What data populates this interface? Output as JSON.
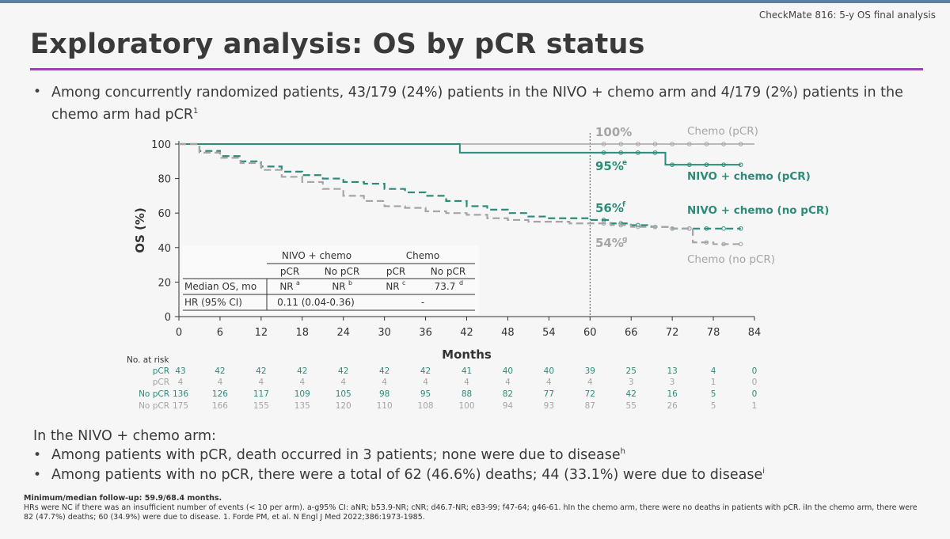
{
  "header": {
    "context": "CheckMate 816: 5-y OS final analysis"
  },
  "title": "Exploratory analysis: OS by pCR status",
  "intro": {
    "bullet": "•",
    "text": "Among concurrently randomized patients, 43/179 (24%) patients in the NIVO + chemo arm and 4/179 (2%) patients in the chemo arm had pCR",
    "sup": "1"
  },
  "lower": {
    "heading": "In the NIVO + chemo arm:",
    "bullets": [
      {
        "text": "Among patients with pCR, death occurred in 3 patients; none were due to disease",
        "sup": "h"
      },
      {
        "text": "Among patients with no pCR, there were a total of 62 (46.6%) deaths; 44 (33.1%) were due to disease",
        "sup": "i"
      }
    ]
  },
  "footnotes": {
    "line1": "Minimum/median follow-up: 59.9/68.4 months.",
    "line2": "HRs were NC if there was an insufficient number of events (< 10 per arm). a-g95% CI: aNR; b53.9-NR; cNR; d46.7-NR; e83-99; f47-64; g46-61. hIn the chemo arm, there were no deaths in patients with pCR. iIn the chemo arm, there were 82 (47.7%) deaths; 60 (34.9%) were due to disease. 1. Forde PM, et al. N Engl J Med 2022;386:1973-1985."
  },
  "colors": {
    "teal": "#2e8b7a",
    "gray": "#a5a5a5",
    "accent_rule": "#9c46b4"
  },
  "chart_data": {
    "type": "line",
    "xlabel": "Months",
    "ylabel": "OS (%)",
    "xlim": [
      0,
      84
    ],
    "ylim": [
      0,
      100
    ],
    "xticks": [
      0,
      6,
      12,
      18,
      24,
      30,
      36,
      42,
      48,
      54,
      60,
      66,
      72,
      78,
      84
    ],
    "yticks": [
      0,
      20,
      40,
      60,
      80,
      100
    ],
    "reference_line_x": 60,
    "series": [
      {
        "name": "Chemo (pCR)",
        "style": "solid-gray",
        "value_at_60": "100%",
        "x": [
          0,
          84
        ],
        "y": [
          100,
          100
        ]
      },
      {
        "name": "NIVO + chemo (pCR)",
        "style": "solid-teal",
        "value_at_60": "95%",
        "value_sup": "e",
        "x": [
          0,
          41,
          71,
          82
        ],
        "y": [
          100,
          95,
          88,
          88
        ]
      },
      {
        "name": "NIVO + chemo (no pCR)",
        "style": "dashed-teal",
        "value_at_60": "56%",
        "value_sup": "f",
        "x": [
          0,
          3,
          6,
          9,
          12,
          15,
          18,
          21,
          24,
          27,
          30,
          33,
          36,
          39,
          42,
          45,
          48,
          51,
          54,
          57,
          60,
          63,
          66,
          69,
          72,
          75,
          78,
          82
        ],
        "y": [
          100,
          96,
          93,
          90,
          87,
          84,
          82,
          80,
          78,
          77,
          74,
          72,
          70,
          67,
          64,
          62,
          60,
          58,
          57,
          57,
          56,
          54,
          53,
          52,
          51,
          51,
          51,
          51
        ]
      },
      {
        "name": "Chemo (no pCR)",
        "style": "dashed-gray",
        "value_at_60": "54%",
        "value_sup": "g",
        "x": [
          0,
          3,
          6,
          9,
          12,
          15,
          18,
          21,
          24,
          27,
          30,
          33,
          36,
          39,
          42,
          45,
          48,
          51,
          54,
          57,
          60,
          63,
          66,
          69,
          72,
          75,
          78,
          82
        ],
        "y": [
          100,
          95,
          92,
          89,
          85,
          81,
          78,
          74,
          70,
          67,
          64,
          63,
          61,
          60,
          59,
          57,
          56,
          55,
          55,
          54,
          54,
          53,
          52,
          52,
          51,
          43,
          42,
          42
        ]
      }
    ],
    "table": {
      "groups": [
        "NIVO + chemo",
        "Chemo"
      ],
      "subheads": [
        "pCR",
        "No pCR",
        "pCR",
        "No pCR"
      ],
      "rows": [
        {
          "label": "Median OS, mo",
          "cells": [
            {
              "text": "NR",
              "sup": "a"
            },
            {
              "text": "NR",
              "sup": "b"
            },
            {
              "text": "NR",
              "sup": "c"
            },
            {
              "text": "73.7",
              "sup": "d"
            }
          ]
        },
        {
          "label": "HR (95% CI)",
          "nivo": "0.11 (0.04-0.36)",
          "chemo": "-"
        }
      ]
    },
    "at_risk": {
      "title": "No. at risk",
      "rows": [
        {
          "label": "pCR",
          "color": "teal",
          "values": [
            43,
            42,
            42,
            42,
            42,
            42,
            42,
            41,
            40,
            40,
            39,
            25,
            13,
            4,
            0
          ]
        },
        {
          "label": "pCR",
          "color": "gray",
          "values": [
            4,
            4,
            4,
            4,
            4,
            4,
            4,
            4,
            4,
            4,
            4,
            3,
            3,
            1,
            0
          ]
        },
        {
          "label": "No pCR",
          "color": "teal",
          "values": [
            136,
            126,
            117,
            109,
            105,
            98,
            95,
            88,
            82,
            77,
            72,
            42,
            16,
            5,
            0
          ]
        },
        {
          "label": "No pCR",
          "color": "gray",
          "values": [
            175,
            166,
            155,
            135,
            120,
            110,
            108,
            100,
            94,
            93,
            87,
            55,
            26,
            5,
            1
          ]
        }
      ]
    }
  }
}
